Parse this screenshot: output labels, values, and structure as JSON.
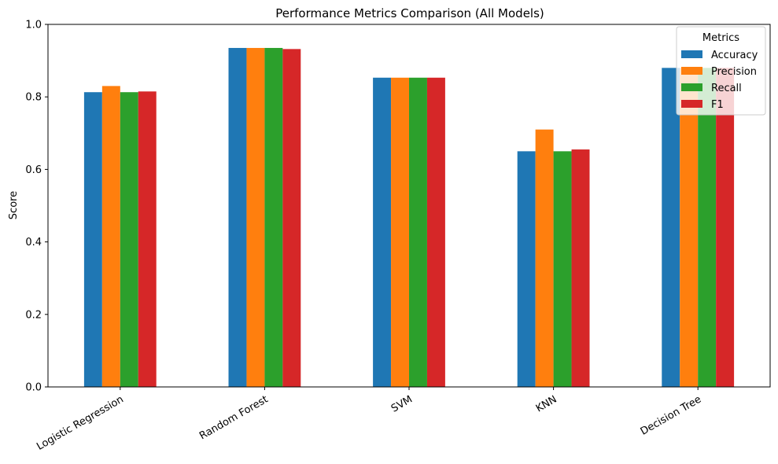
{
  "chart_data": {
    "type": "bar",
    "title": "Performance Metrics Comparison (All Models)",
    "xlabel": "",
    "ylabel": "Score",
    "ylim": [
      0,
      1.0
    ],
    "yticks": [
      "0.0",
      "0.2",
      "0.4",
      "0.6",
      "0.8",
      "1.0"
    ],
    "categories": [
      "Logistic Regression",
      "Random Forest",
      "SVM",
      "KNN",
      "Decision Tree"
    ],
    "series": [
      {
        "name": "Accuracy",
        "color": "#1f77b4",
        "values": [
          0.813,
          0.935,
          0.853,
          0.65,
          0.88
        ]
      },
      {
        "name": "Precision",
        "color": "#ff7f0e",
        "values": [
          0.83,
          0.935,
          0.853,
          0.71,
          0.88
        ]
      },
      {
        "name": "Recall",
        "color": "#2ca02c",
        "values": [
          0.813,
          0.935,
          0.853,
          0.65,
          0.88
        ]
      },
      {
        "name": "F1",
        "color": "#d62728",
        "values": [
          0.815,
          0.932,
          0.853,
          0.655,
          0.88
        ]
      }
    ],
    "legend": {
      "title": "Metrics",
      "position": "top-right"
    },
    "grid": false
  }
}
